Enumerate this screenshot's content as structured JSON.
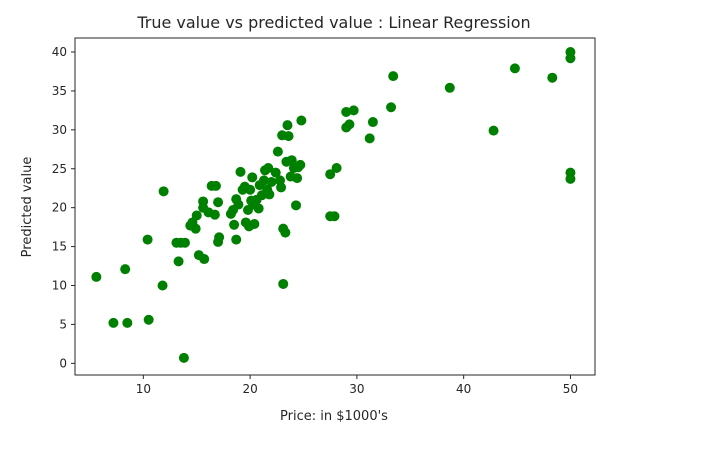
{
  "chart_data": {
    "type": "scatter",
    "title": "True value vs predicted value : Linear Regression",
    "xlabel": "Price: in $1000's",
    "ylabel": "Predicted value",
    "xlim": [
      3.6,
      52.3
    ],
    "ylim": [
      -1.5,
      41.8
    ],
    "xticks": [
      10,
      20,
      30,
      40,
      50
    ],
    "yticks": [
      0,
      5,
      10,
      15,
      20,
      25,
      30,
      35,
      40
    ],
    "grid": false,
    "marker_color": "#008000",
    "points": [
      [
        5.6,
        11.1
      ],
      [
        7.2,
        5.2
      ],
      [
        8.3,
        12.1
      ],
      [
        8.5,
        5.2
      ],
      [
        10.4,
        15.9
      ],
      [
        10.5,
        5.6
      ],
      [
        11.8,
        10.0
      ],
      [
        11.9,
        22.1
      ],
      [
        13.1,
        15.5
      ],
      [
        13.3,
        13.1
      ],
      [
        13.5,
        15.5
      ],
      [
        13.9,
        15.5
      ],
      [
        13.8,
        0.7
      ],
      [
        14.4,
        17.7
      ],
      [
        14.6,
        18.1
      ],
      [
        15.0,
        19.0
      ],
      [
        14.9,
        17.3
      ],
      [
        15.2,
        13.9
      ],
      [
        15.6,
        20.0
      ],
      [
        15.7,
        13.4
      ],
      [
        15.6,
        20.8
      ],
      [
        16.1,
        19.4
      ],
      [
        16.4,
        22.8
      ],
      [
        16.8,
        22.8
      ],
      [
        16.7,
        19.1
      ],
      [
        17.0,
        20.7
      ],
      [
        17.0,
        15.6
      ],
      [
        17.1,
        16.2
      ],
      [
        18.2,
        19.2
      ],
      [
        18.4,
        19.7
      ],
      [
        18.5,
        17.8
      ],
      [
        18.7,
        21.1
      ],
      [
        18.9,
        20.4
      ],
      [
        18.7,
        15.9
      ],
      [
        19.1,
        24.6
      ],
      [
        19.3,
        22.3
      ],
      [
        19.5,
        22.7
      ],
      [
        19.6,
        18.1
      ],
      [
        19.8,
        19.7
      ],
      [
        19.9,
        17.6
      ],
      [
        20.1,
        20.9
      ],
      [
        20.2,
        23.9
      ],
      [
        20.0,
        22.3
      ],
      [
        20.3,
        20.4
      ],
      [
        20.4,
        17.9
      ],
      [
        20.6,
        21.0
      ],
      [
        20.8,
        19.9
      ],
      [
        20.9,
        22.9
      ],
      [
        21.1,
        21.6
      ],
      [
        21.3,
        23.5
      ],
      [
        21.4,
        24.8
      ],
      [
        21.7,
        25.1
      ],
      [
        21.6,
        22.3
      ],
      [
        21.8,
        21.7
      ],
      [
        22.0,
        23.3
      ],
      [
        22.4,
        24.5
      ],
      [
        22.6,
        27.2
      ],
      [
        22.8,
        23.5
      ],
      [
        22.9,
        22.6
      ],
      [
        23.0,
        29.3
      ],
      [
        23.1,
        17.3
      ],
      [
        23.1,
        10.2
      ],
      [
        23.3,
        16.8
      ],
      [
        23.4,
        25.9
      ],
      [
        23.5,
        30.6
      ],
      [
        23.6,
        29.2
      ],
      [
        23.8,
        24.0
      ],
      [
        23.9,
        26.1
      ],
      [
        24.1,
        25.1
      ],
      [
        24.3,
        20.3
      ],
      [
        24.4,
        23.8
      ],
      [
        24.5,
        25.2
      ],
      [
        24.8,
        31.2
      ],
      [
        24.7,
        25.5
      ],
      [
        27.5,
        18.9
      ],
      [
        27.5,
        24.3
      ],
      [
        27.9,
        18.9
      ],
      [
        28.1,
        25.1
      ],
      [
        29.0,
        32.3
      ],
      [
        29.0,
        30.3
      ],
      [
        29.3,
        30.7
      ],
      [
        29.7,
        32.5
      ],
      [
        31.2,
        28.9
      ],
      [
        31.5,
        31.0
      ],
      [
        33.2,
        32.9
      ],
      [
        33.4,
        36.9
      ],
      [
        38.7,
        35.4
      ],
      [
        42.8,
        29.9
      ],
      [
        44.8,
        37.9
      ],
      [
        48.3,
        36.7
      ],
      [
        50.0,
        40.0
      ],
      [
        50.0,
        39.2
      ],
      [
        50.0,
        24.5
      ],
      [
        50.0,
        23.7
      ]
    ]
  }
}
